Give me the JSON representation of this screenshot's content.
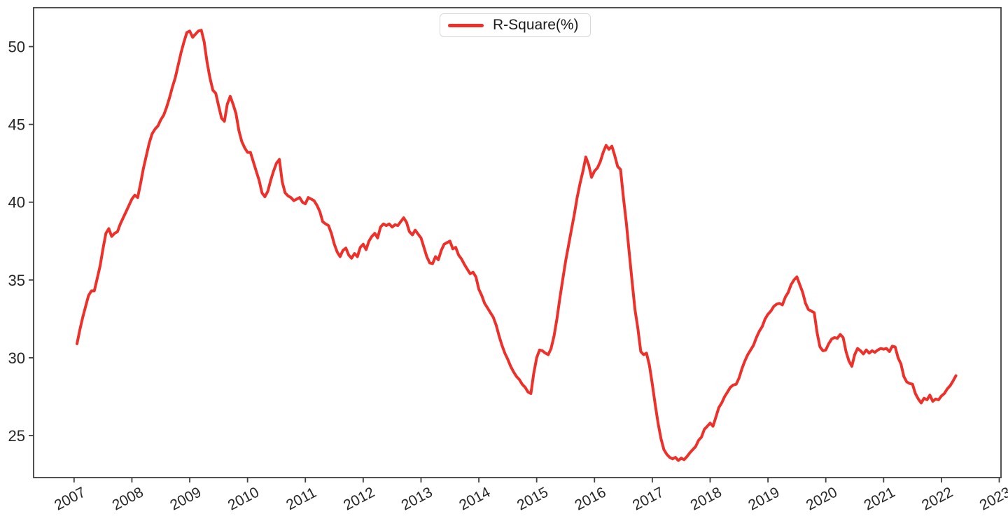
{
  "figure": {
    "legend": {
      "label": "R-Square(%)"
    }
  },
  "chart_data": {
    "type": "line",
    "title": "",
    "xlabel": "",
    "ylabel": "",
    "grid": false,
    "legend_position": "upper center",
    "xlim": [
      2006.3,
      2023.03
    ],
    "ylim": [
      22.3,
      52.5
    ],
    "xticks": [
      2007,
      2008,
      2009,
      2010,
      2011,
      2012,
      2013,
      2014,
      2015,
      2016,
      2017,
      2018,
      2019,
      2020,
      2021,
      2022,
      2023
    ],
    "xtick_labels": [
      "2007",
      "2008",
      "2009",
      "2010",
      "2011",
      "2012",
      "2013",
      "2014",
      "2015",
      "2016",
      "2017",
      "2018",
      "2019",
      "2020",
      "2021",
      "2022",
      "2023"
    ],
    "yticks": [
      25,
      30,
      35,
      40,
      45,
      50
    ],
    "x_start": 2007.05,
    "x_step": 0.05,
    "series": [
      {
        "name": "R-Square(%)",
        "color": "#ed3029",
        "values": [
          30.9,
          31.8,
          32.6,
          33.3,
          34.0,
          34.3,
          34.3,
          35.1,
          35.9,
          37.0,
          38.0,
          38.3,
          37.8,
          38.0,
          38.1,
          38.6,
          39.0,
          39.4,
          39.8,
          40.2,
          40.45,
          40.3,
          41.2,
          42.2,
          43.0,
          43.8,
          44.4,
          44.7,
          44.9,
          45.3,
          45.6,
          46.1,
          46.7,
          47.4,
          48.0,
          48.8,
          49.6,
          50.3,
          50.9,
          51.0,
          50.6,
          50.8,
          51.0,
          51.05,
          50.3,
          49.0,
          48.0,
          47.2,
          47.0,
          46.2,
          45.4,
          45.2,
          46.3,
          46.8,
          46.3,
          45.7,
          44.6,
          43.9,
          43.5,
          43.2,
          43.2,
          42.6,
          42.0,
          41.4,
          40.6,
          40.35,
          40.7,
          41.4,
          42.0,
          42.5,
          42.75,
          41.3,
          40.6,
          40.4,
          40.3,
          40.1,
          40.2,
          40.3,
          40.0,
          39.9,
          40.3,
          40.2,
          40.1,
          39.8,
          39.4,
          38.75,
          38.6,
          38.5,
          38.0,
          37.3,
          36.8,
          36.5,
          36.9,
          37.05,
          36.6,
          36.4,
          36.7,
          36.5,
          37.1,
          37.3,
          36.95,
          37.5,
          37.8,
          38.0,
          37.7,
          38.4,
          38.6,
          38.5,
          38.6,
          38.4,
          38.55,
          38.5,
          38.75,
          39.0,
          38.7,
          38.1,
          37.9,
          38.2,
          37.95,
          37.7,
          37.1,
          36.5,
          36.1,
          36.05,
          36.5,
          36.3,
          36.9,
          37.3,
          37.4,
          37.5,
          37.0,
          37.1,
          36.6,
          36.35,
          36.0,
          35.7,
          35.4,
          35.5,
          35.2,
          34.4,
          34.0,
          33.5,
          33.2,
          32.9,
          32.6,
          32.1,
          31.4,
          30.8,
          30.3,
          29.9,
          29.45,
          29.1,
          28.8,
          28.6,
          28.3,
          28.1,
          27.8,
          27.7,
          29.0,
          30.0,
          30.5,
          30.45,
          30.3,
          30.2,
          30.6,
          31.4,
          32.5,
          33.8,
          35.0,
          36.2,
          37.2,
          38.2,
          39.2,
          40.3,
          41.2,
          42.0,
          42.9,
          42.4,
          41.6,
          42.0,
          42.2,
          42.6,
          43.2,
          43.65,
          43.4,
          43.6,
          43.0,
          42.3,
          42.1,
          40.3,
          38.7,
          36.8,
          34.9,
          33.1,
          31.9,
          30.4,
          30.2,
          30.3,
          29.5,
          28.3,
          27.0,
          25.8,
          24.8,
          24.1,
          23.8,
          23.6,
          23.5,
          23.6,
          23.4,
          23.55,
          23.45,
          23.65,
          23.9,
          24.1,
          24.3,
          24.7,
          24.9,
          25.4,
          25.6,
          25.8,
          25.6,
          26.2,
          26.8,
          27.1,
          27.5,
          27.8,
          28.1,
          28.25,
          28.3,
          28.7,
          29.3,
          29.8,
          30.2,
          30.5,
          30.8,
          31.3,
          31.7,
          32.0,
          32.5,
          32.8,
          33.0,
          33.3,
          33.45,
          33.5,
          33.4,
          33.9,
          34.2,
          34.7,
          35.0,
          35.2,
          34.7,
          34.2,
          33.5,
          33.1,
          33.0,
          32.9,
          31.6,
          30.7,
          30.45,
          30.5,
          30.9,
          31.2,
          31.3,
          31.25,
          31.5,
          31.3,
          30.4,
          29.8,
          29.45,
          30.2,
          30.6,
          30.45,
          30.25,
          30.5,
          30.3,
          30.45,
          30.35,
          30.5,
          30.6,
          30.55,
          30.6,
          30.4,
          30.75,
          30.7,
          30.0,
          29.6,
          28.8,
          28.45,
          28.35,
          28.3,
          27.7,
          27.35,
          27.1,
          27.4,
          27.3,
          27.6,
          27.2,
          27.35,
          27.3,
          27.55,
          27.7,
          28.0,
          28.2,
          28.5,
          28.85
        ]
      }
    ]
  }
}
